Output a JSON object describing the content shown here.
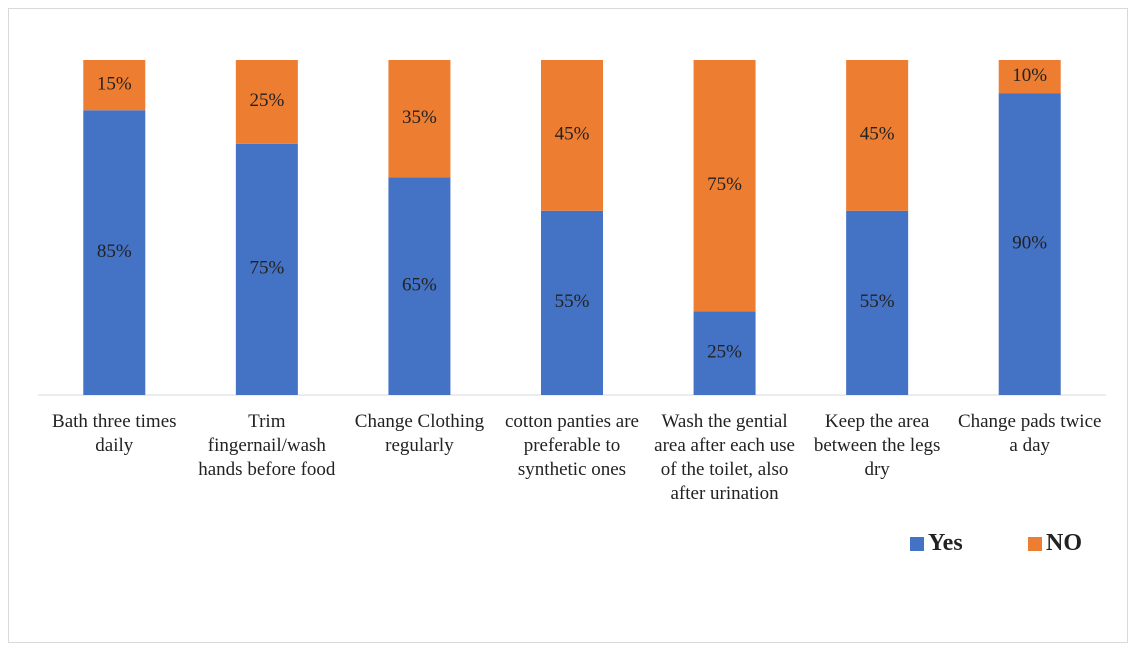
{
  "chart_data": {
    "type": "stacked_bar",
    "categories": [
      "Bath three times daily",
      "Trim fingernail/wash hands before food",
      "Change Clothing regularly",
      "cotton panties are preferable to synthetic ones",
      "Wash the gential area after each use of the toilet, also after urination",
      "Keep the area between the legs dry",
      "Change pads twice a day"
    ],
    "series": [
      {
        "name": "Yes",
        "color": "#4472c4",
        "values": [
          85,
          75,
          65,
          55,
          25,
          55,
          90
        ],
        "value_labels": [
          "85%",
          "75%",
          "65%",
          "55%",
          "25%",
          "55%",
          "90%"
        ]
      },
      {
        "name": "NO",
        "color": "#ed7d31",
        "values": [
          15,
          25,
          35,
          45,
          75,
          45,
          10
        ],
        "value_labels": [
          "15%",
          "25%",
          "35%",
          "45%",
          "75%",
          "45%",
          "10%"
        ]
      }
    ],
    "ylim": [
      0,
      100
    ],
    "legend": "bottom-right"
  }
}
